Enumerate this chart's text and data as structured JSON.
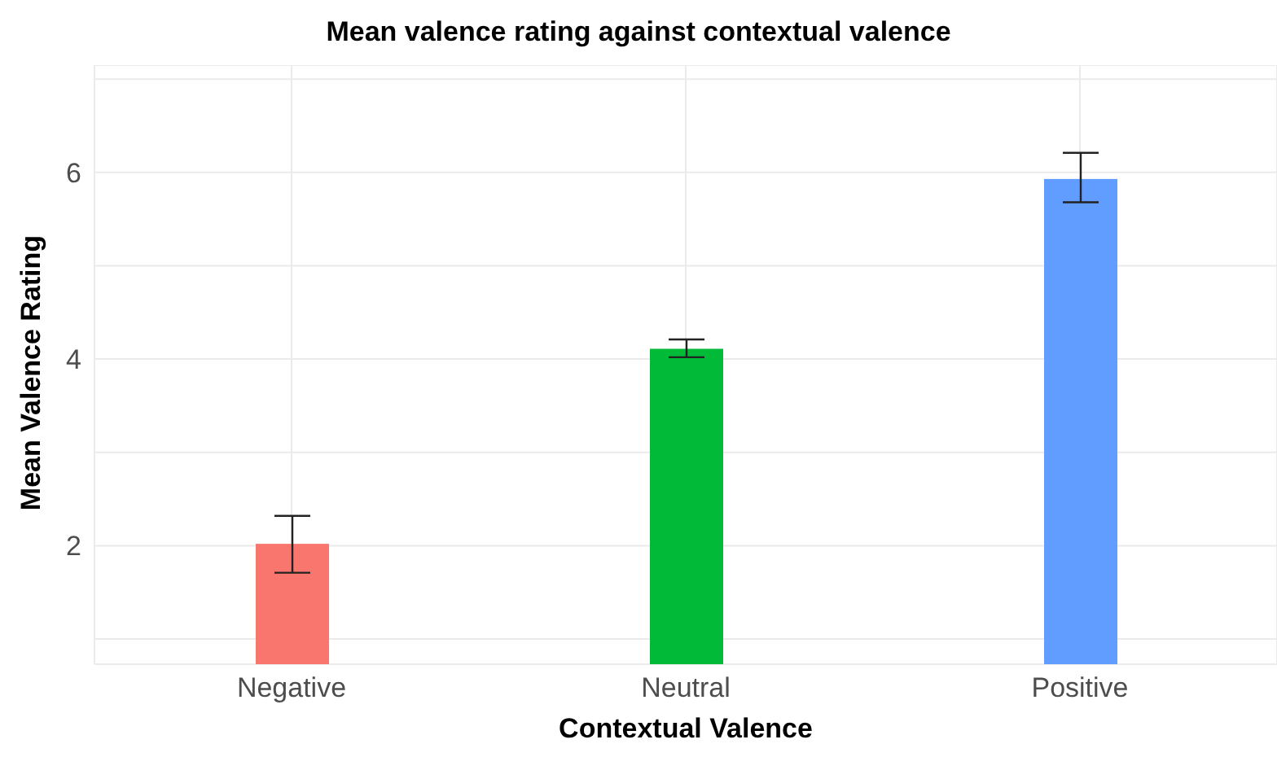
{
  "chart_data": {
    "type": "bar",
    "title": "Mean valence rating against contextual valence",
    "xlabel": "Contextual Valence",
    "ylabel": "Mean Valence Rating",
    "categories": [
      "Negative",
      "Neutral",
      "Positive"
    ],
    "values": [
      2.02,
      4.11,
      5.93
    ],
    "colors": [
      "#f8766d",
      "#00ba38",
      "#619cff"
    ],
    "errors": [
      [
        1.71,
        2.32
      ],
      [
        4.02,
        4.21
      ],
      [
        5.68,
        6.21
      ]
    ],
    "ylim": [
      0.73,
      7.15
    ],
    "yticks": [
      {
        "value": 1,
        "label": null
      },
      2,
      {
        "value": 3,
        "label": null
      },
      4,
      {
        "value": 5,
        "label": null
      },
      6,
      {
        "value": 7,
        "label": null
      }
    ],
    "grid": true,
    "legend": false
  }
}
